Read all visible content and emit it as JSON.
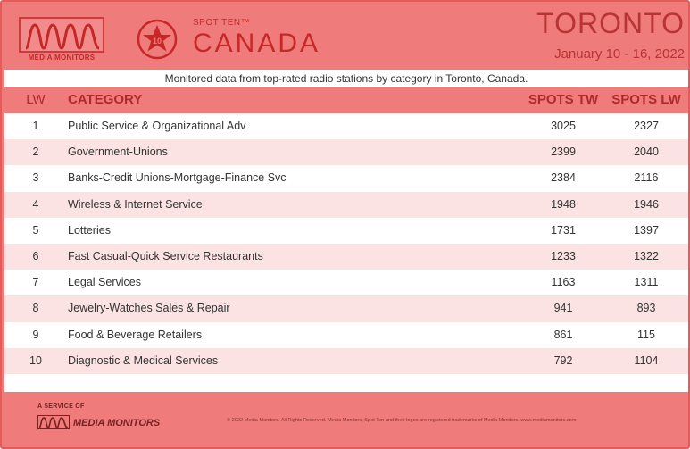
{
  "header": {
    "logo_text": "MEDIA MONITORS",
    "badge_number": "10",
    "spot_ten": "SPOT TEN™",
    "country": "CANADA",
    "city": "TORONTO",
    "dates": "January 10 - 16, 2022"
  },
  "subtitle": "Monitored data from top-rated radio stations by category in Toronto, Canada.",
  "table": {
    "headers": {
      "lw": "LW",
      "category": "CATEGORY",
      "spots_tw": "SPOTS TW",
      "spots_lw": "SPOTS LW"
    },
    "rows": [
      {
        "lw": "1",
        "category": "Public Service & Organizational Adv",
        "tw": "3025",
        "lw_spots": "2327"
      },
      {
        "lw": "2",
        "category": "Government-Unions",
        "tw": "2399",
        "lw_spots": "2040"
      },
      {
        "lw": "3",
        "category": "Banks-Credit Unions-Mortgage-Finance Svc",
        "tw": "2384",
        "lw_spots": "2116"
      },
      {
        "lw": "4",
        "category": "Wireless & Internet Service",
        "tw": "1948",
        "lw_spots": "1946"
      },
      {
        "lw": "5",
        "category": "Lotteries",
        "tw": "1731",
        "lw_spots": "1397"
      },
      {
        "lw": "6",
        "category": "Fast Casual-Quick Service Restaurants",
        "tw": "1233",
        "lw_spots": "1322"
      },
      {
        "lw": "7",
        "category": "Legal Services",
        "tw": "1163",
        "lw_spots": "1311"
      },
      {
        "lw": "8",
        "category": "Jewelry-Watches Sales & Repair",
        "tw": "941",
        "lw_spots": "893"
      },
      {
        "lw": "9",
        "category": "Food & Beverage Retailers",
        "tw": "861",
        "lw_spots": "115"
      },
      {
        "lw": "10",
        "category": "Diagnostic & Medical Services",
        "tw": "792",
        "lw_spots": "1104"
      }
    ]
  },
  "footer": {
    "service_of": "A SERVICE OF",
    "brand": "MEDIA MONITORS",
    "copyright": "© 2022 Media Monitors. All Rights Reserved. Media Monitors, Spot Ten and their logos are registered trademarks of Media Monitors. www.mediamonitors.com"
  },
  "colors": {
    "background": "#f07b7b",
    "accent": "#c62828",
    "row_alt": "#fbe3e3"
  }
}
